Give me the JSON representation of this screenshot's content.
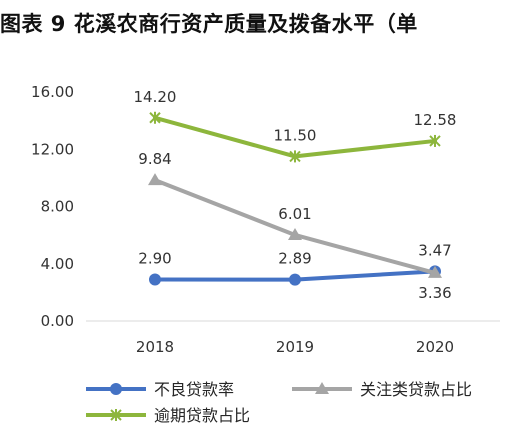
{
  "chart_data": {
    "type": "line",
    "title": "图表 9  花溪农商行资产质量及拨备水平（单",
    "categories": [
      "2018",
      "2019",
      "2020"
    ],
    "ylim": [
      0,
      16
    ],
    "yticks": [
      "0.00",
      "4.00",
      "8.00",
      "12.00",
      "16.00"
    ],
    "grid": false,
    "legend_position": "bottom",
    "series": [
      {
        "name": "不良贷款率",
        "values": [
          2.9,
          2.89,
          3.47
        ],
        "labels": [
          "2.90",
          "2.89",
          "3.47"
        ],
        "color": "#4472C4",
        "marker": "circle",
        "label_pos": [
          "above",
          "above",
          "above"
        ]
      },
      {
        "name": "关注类贷款占比",
        "values": [
          9.84,
          6.01,
          3.36
        ],
        "labels": [
          "9.84",
          "6.01",
          "3.36"
        ],
        "color": "#A5A5A5",
        "marker": "triangle",
        "label_pos": [
          "above",
          "above",
          "below"
        ]
      },
      {
        "name": "逾期贷款占比",
        "values": [
          14.2,
          11.5,
          12.58
        ],
        "labels": [
          "14.20",
          "11.50",
          "12.58"
        ],
        "color": "#8DB63C",
        "marker": "star",
        "label_pos": [
          "above",
          "above",
          "above"
        ]
      }
    ]
  }
}
